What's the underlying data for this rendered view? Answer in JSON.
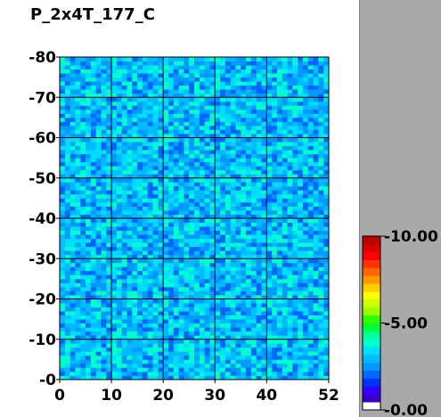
{
  "window": {
    "title": "P_2x4T_177_C"
  },
  "chart_data": {
    "type": "heatmap",
    "title": "P_2x4T_177_C",
    "xlabel": "",
    "ylabel": "",
    "xlim": [
      0,
      52
    ],
    "ylim": [
      0,
      80
    ],
    "x_ticks": [
      "0",
      "10",
      "20",
      "30",
      "40",
      "52"
    ],
    "y_ticks": [
      "0",
      "10",
      "20",
      "30",
      "40",
      "50",
      "60",
      "70",
      "80"
    ],
    "grid": true,
    "columns": 52,
    "rows": 80,
    "value_range_estimate": [
      2.0,
      4.0
    ],
    "colorbar": {
      "min": 0.0,
      "max": 10.0,
      "ticks": [
        "0.00",
        "5.00",
        "10.00"
      ],
      "placement": "right",
      "colors": [
        "#ffffff",
        "#3a00c8",
        "#3300ff",
        "#0033ff",
        "#0066ff",
        "#0099ff",
        "#00bbff",
        "#00ddff",
        "#00ffcc",
        "#00ff99",
        "#00ff33",
        "#33ff00",
        "#99ff00",
        "#ccff00",
        "#ffff00",
        "#ffcc00",
        "#ff9900",
        "#ff6600",
        "#ff3300",
        "#ff0000",
        "#dd0000",
        "#bb0000"
      ]
    }
  }
}
